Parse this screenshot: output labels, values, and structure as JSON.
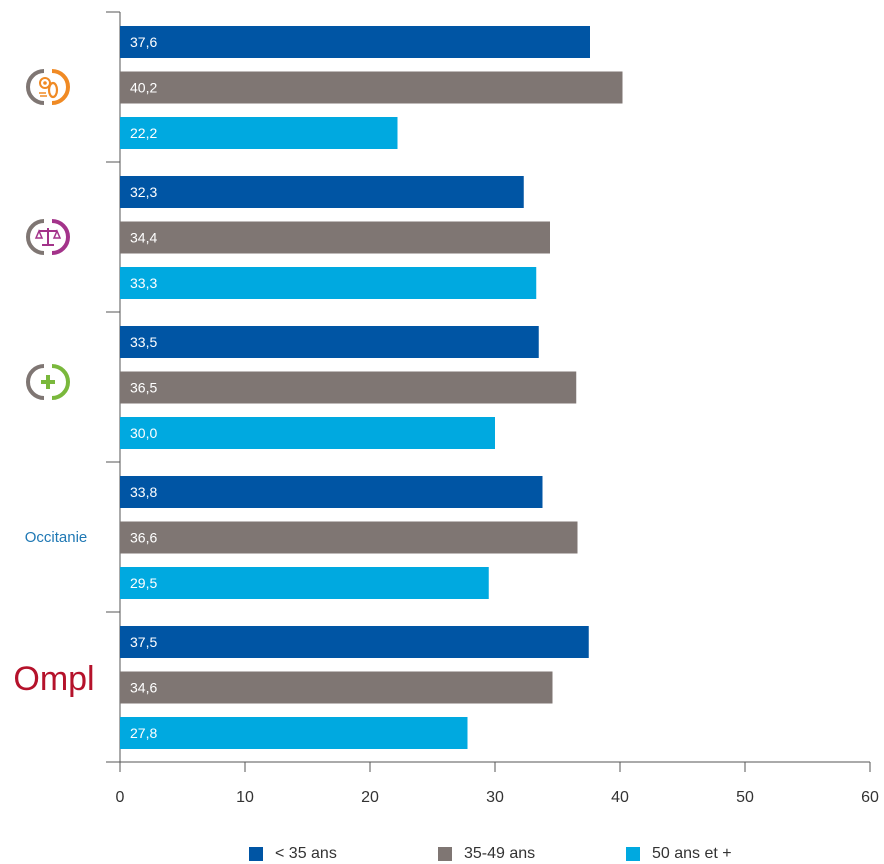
{
  "chart_data": {
    "type": "bar",
    "orientation": "horizontal",
    "categories": [
      "professions-techniques-icon",
      "professions-juridiques-icon",
      "professions-sante-icon",
      "Occitanie",
      "Ompl"
    ],
    "series": [
      {
        "name": "< 35 ans",
        "color": "#0055a4",
        "values": [
          37.6,
          32.3,
          33.5,
          33.8,
          37.5
        ],
        "labels": [
          "37,6",
          "32,3",
          "33,5",
          "33,8",
          "37,5"
        ]
      },
      {
        "name": "35-49 ans",
        "color": "#7f7673",
        "values": [
          40.2,
          34.4,
          36.5,
          36.6,
          34.6
        ],
        "labels": [
          "40,2",
          "34,4",
          "36,5",
          "36,6",
          "34,6"
        ]
      },
      {
        "name": "50 ans et +",
        "color": "#00a9e0",
        "values": [
          22.2,
          33.3,
          30.0,
          29.5,
          27.8
        ],
        "labels": [
          "22,2",
          "33,3",
          "30,0",
          "29,5",
          "27,8"
        ]
      }
    ],
    "xlim": [
      0,
      60
    ],
    "xticks": [
      "0",
      "10",
      "20",
      "30",
      "40",
      "50",
      "60"
    ],
    "grid": false,
    "legend_position": "bottom"
  },
  "category_text": {
    "occitanie": "Occitanie"
  },
  "logo_text": "Ompl",
  "icon_colors": {
    "techniques": "#f08a24",
    "juridiques": "#a3338a",
    "sante": "#7ab83c",
    "neutral": "#7f7673",
    "ompl": "#b5122b"
  }
}
